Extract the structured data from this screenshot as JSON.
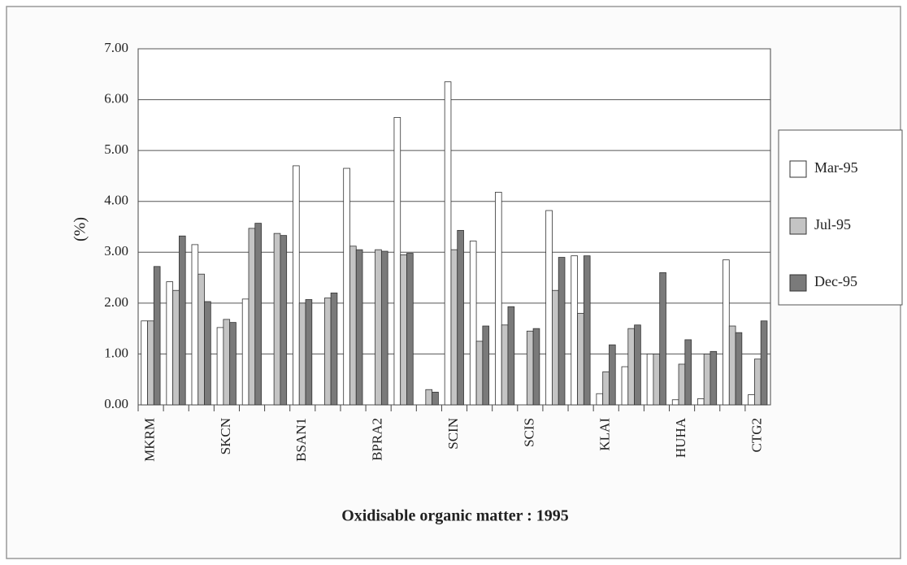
{
  "chart_data": {
    "type": "bar",
    "title": "Oxidisable organic matter : 1995",
    "y_label": "(%)",
    "categories": [
      "MKRM",
      null,
      null,
      "SKCN",
      null,
      null,
      "BSAN1",
      null,
      null,
      "BPRA2",
      null,
      null,
      "SCIN",
      null,
      null,
      "SCIS",
      null,
      null,
      "KLAI",
      null,
      null,
      "HUHA",
      null,
      null,
      "CTG2"
    ],
    "series": [
      {
        "name": "Mar-95",
        "color": "#ffffff",
        "values": [
          1.65,
          2.42,
          3.15,
          1.52,
          2.08,
          0,
          4.7,
          0,
          4.65,
          0,
          5.65,
          0,
          6.35,
          3.22,
          4.18,
          0,
          3.82,
          2.93,
          0.22,
          0.75,
          1.0,
          0.1,
          0.12,
          2.85,
          0.2
        ]
      },
      {
        "name": "Jul-95",
        "color": "#c4c4c4",
        "values": [
          1.65,
          2.25,
          2.57,
          1.68,
          3.47,
          3.37,
          2.0,
          2.1,
          3.12,
          3.05,
          2.95,
          0.3,
          3.05,
          1.25,
          1.57,
          1.45,
          2.25,
          1.8,
          0.65,
          1.5,
          1.0,
          0.8,
          1.0,
          1.55,
          0.9
        ]
      },
      {
        "name": "Dec-95",
        "color": "#7a7a7a",
        "values": [
          2.72,
          3.32,
          2.03,
          1.62,
          3.57,
          3.33,
          2.07,
          2.2,
          3.05,
          3.02,
          2.98,
          0.25,
          3.43,
          1.55,
          1.93,
          1.5,
          2.9,
          2.93,
          1.18,
          1.57,
          2.6,
          1.28,
          1.05,
          1.42,
          1.65
        ]
      }
    ],
    "ylim": [
      0,
      7
    ],
    "yticks": [
      {
        "value": 0,
        "label": "0.00"
      },
      {
        "value": 1,
        "label": "1.00"
      },
      {
        "value": 2,
        "label": "2.00"
      },
      {
        "value": 3,
        "label": "3.00"
      },
      {
        "value": 4,
        "label": "4.00"
      },
      {
        "value": 5,
        "label": "5.00"
      },
      {
        "value": 6,
        "label": "6.00"
      },
      {
        "value": 7,
        "label": "7.00"
      }
    ],
    "grid": true,
    "legend": "right"
  }
}
